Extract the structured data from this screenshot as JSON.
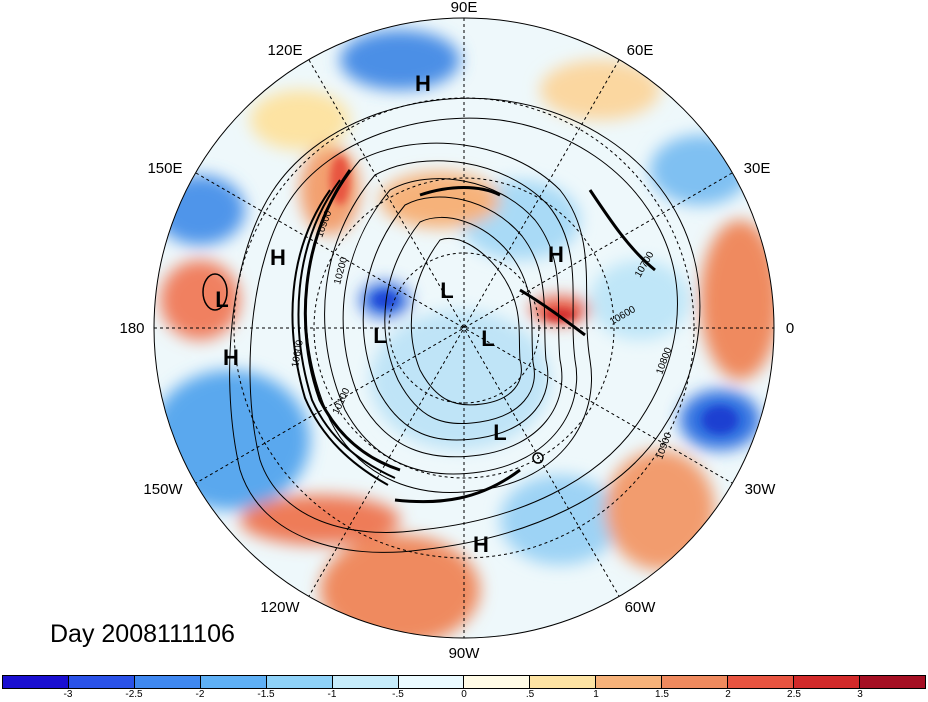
{
  "title": "Day 2008111106",
  "longitude_labels": {
    "lon_90e": "90E",
    "lon_60e": "60E",
    "lon_30e": "30E",
    "lon_0": "0",
    "lon_30w": "30W",
    "lon_60w": "60W",
    "lon_90w": "90W",
    "lon_120w": "120W",
    "lon_150w": "150W",
    "lon_180": "180",
    "lon_150e": "150E",
    "lon_120e": "120E"
  },
  "pressure_centers": [
    {
      "label": "H",
      "lon_desc": "Siberia"
    },
    {
      "label": "H",
      "lon_desc": "Bering Sea"
    },
    {
      "label": "L",
      "lon_desc": "Pacific"
    },
    {
      "label": "H",
      "lon_desc": "Pacific"
    },
    {
      "label": "L",
      "lon_desc": "Arctic"
    },
    {
      "label": "L",
      "lon_desc": "Canadian Arctic"
    },
    {
      "label": "L",
      "lon_desc": "Arctic"
    },
    {
      "label": "H",
      "lon_desc": "Europe"
    },
    {
      "label": "L",
      "lon_desc": "Hudson Bay"
    },
    {
      "label": "H",
      "lon_desc": "Caribbean"
    }
  ],
  "contour_labels": [
    "10900",
    "10200",
    "10600",
    "10100",
    "10700",
    "10600",
    "10800",
    "10900"
  ],
  "colorbar": {
    "colors": [
      "#1a0fd1",
      "#2a52e8",
      "#3f88f0",
      "#5fb0f5",
      "#8fd2f8",
      "#c6ecfb",
      "#eafaff",
      "#fffbe6",
      "#fde3a3",
      "#f6b27a",
      "#ef8a5e",
      "#e85440",
      "#d22a2a",
      "#a50f23"
    ],
    "labels": [
      "-3",
      "-2.5",
      "-2",
      "-1.5",
      "-1",
      "-.5",
      "0",
      ".5",
      "1",
      "1.5",
      "2",
      "2.5",
      "3"
    ]
  }
}
